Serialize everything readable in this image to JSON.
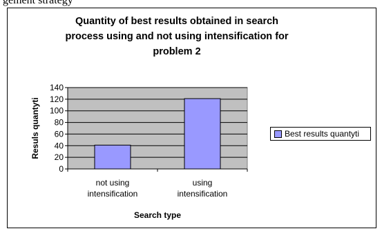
{
  "top_text": "gement strategy",
  "colors": {
    "bar": "#9999ff",
    "plot_bg": "#c0c0c0",
    "gridline": "#000000"
  },
  "chart_data": {
    "type": "bar",
    "title": "Quantity of best results obtained in search process using and not using intensification for problem 2",
    "title_lines": [
      "Quantity of best results obtained in search",
      "process using and not using intensification for",
      "problem 2"
    ],
    "categories": [
      "not using intensification",
      "using intensification"
    ],
    "category_lines": [
      [
        "not using",
        "intensification"
      ],
      [
        "using",
        "intensification"
      ]
    ],
    "series": [
      {
        "name": "Best results quantyti",
        "values": [
          41,
          121
        ]
      }
    ],
    "xlabel": "Search type",
    "ylabel": "Resuls quantyti",
    "ylim": [
      0,
      140
    ],
    "yticks": [
      0,
      20,
      40,
      60,
      80,
      100,
      120,
      140
    ],
    "grid": true,
    "legend_position": "right"
  }
}
